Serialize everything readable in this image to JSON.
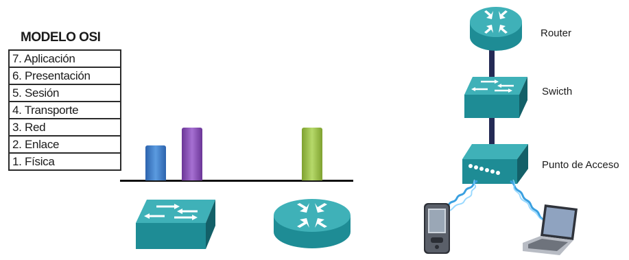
{
  "osi_model": {
    "title": "MODELO OSI",
    "layers": [
      "7. Aplicación",
      "6. Presentación",
      "5. Sesión",
      "4. Transporte",
      "3. Red",
      "2. Enlace",
      "1. Física"
    ]
  },
  "bars": [
    {
      "device": "switch",
      "layer": 2,
      "color": "#3f7fcf"
    },
    {
      "device": "switch",
      "layer": 3,
      "color": "#8a4fb8"
    },
    {
      "device": "router",
      "layer": 3,
      "color": "#9bc24a"
    }
  ],
  "network": {
    "router_label": "Router",
    "switch_label": "Swicth",
    "access_point_label": "Punto de Acceso"
  },
  "colors": {
    "device_teal": "#1e8c95",
    "device_teal_light": "#3fb1b8",
    "device_teal_dark": "#136068",
    "link_navy": "#242a55",
    "wireless_blue": "#3aa0e0"
  }
}
